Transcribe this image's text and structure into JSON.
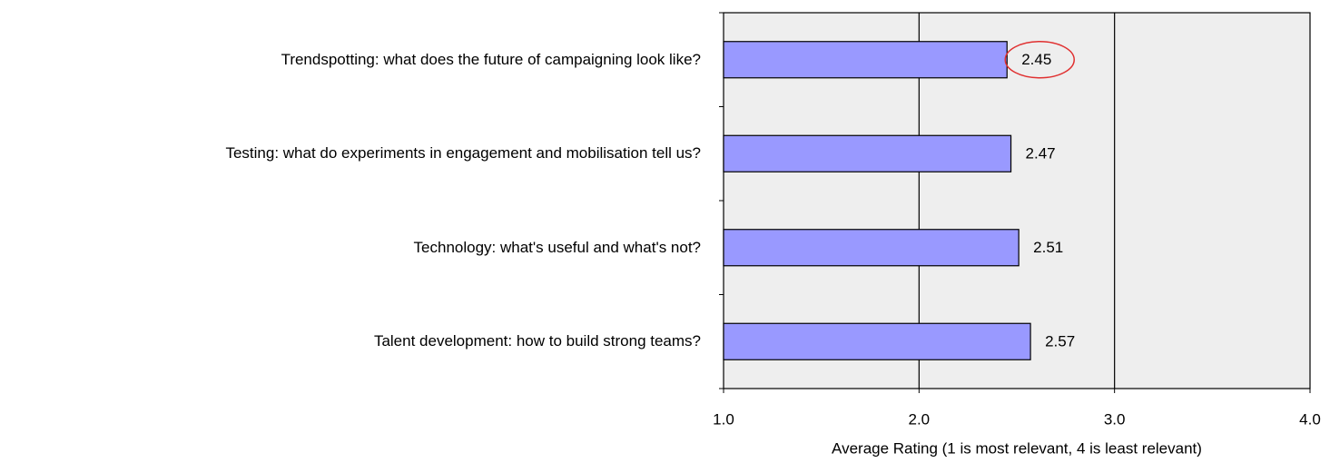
{
  "chart_data": {
    "type": "barh",
    "categories": [
      "Trendspotting: what does the future of campaigning look like?",
      "Testing: what do experiments in engagement and mobilisation tell us?",
      "Technology: what's useful and what's not?",
      "Talent development: how to build strong teams?"
    ],
    "values": [
      2.45,
      2.47,
      2.51,
      2.57
    ],
    "color": "#9999ff",
    "xlabel": "Average Rating (1 is most relevant, 4 is least relevant)",
    "xlim": [
      1,
      4
    ],
    "xticks": [
      {
        "value": 1,
        "label": "1.0"
      },
      {
        "value": 2,
        "label": "2.0"
      },
      {
        "value": 3,
        "label": "3.0"
      },
      {
        "value": 4,
        "label": "4.0"
      }
    ],
    "grid": true,
    "highlight": 0
  }
}
